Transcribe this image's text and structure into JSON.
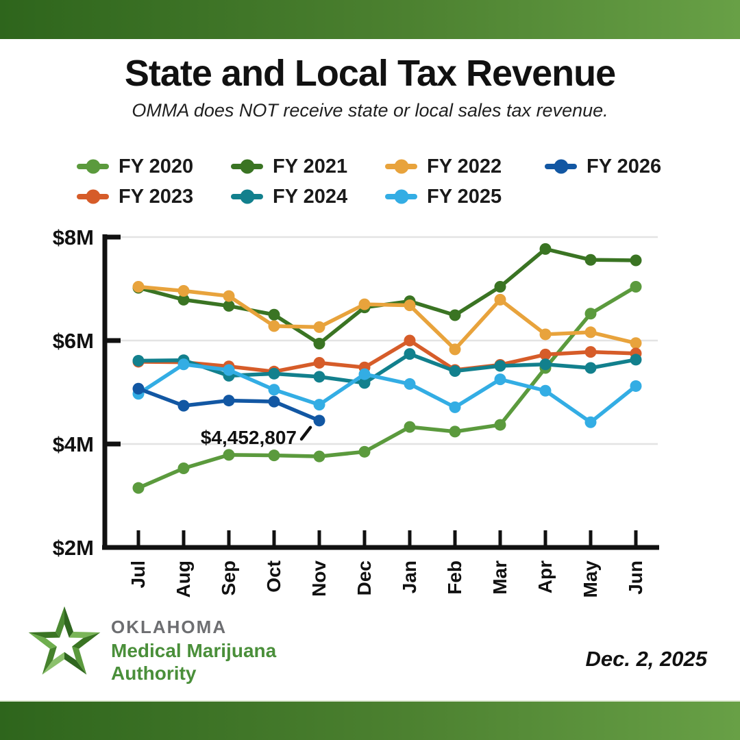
{
  "header": {
    "title": "State and Local Tax Revenue",
    "subtitle": "OMMA does NOT receive state or local sales tax revenue."
  },
  "legend": {
    "order": [
      "FY 2020",
      "FY 2021",
      "FY 2022",
      "FY 2026",
      "FY 2023",
      "FY 2024",
      "FY 2025"
    ]
  },
  "chart_data": {
    "type": "line",
    "title": "State and Local Tax Revenue",
    "categories": [
      "Jul",
      "Aug",
      "Sep",
      "Oct",
      "Nov",
      "Dec",
      "Jan",
      "Feb",
      "Mar",
      "Apr",
      "May",
      "Jun"
    ],
    "y_unit": "millions USD",
    "ylim": [
      2,
      8
    ],
    "yticks": [
      {
        "value": 8,
        "label": "$8M"
      },
      {
        "value": 6,
        "label": "$6M"
      },
      {
        "value": 4,
        "label": "$4M"
      },
      {
        "value": 2,
        "label": "$2M"
      }
    ],
    "grid": "horizontal",
    "legend_position": "top",
    "series": [
      {
        "name": "FY 2020",
        "color": "#5b9a3d",
        "values": [
          3.15,
          3.53,
          3.79,
          3.78,
          3.76,
          3.85,
          4.33,
          4.24,
          4.37,
          5.47,
          6.52,
          7.04
        ]
      },
      {
        "name": "FY 2021",
        "color": "#3a7423",
        "values": [
          7.02,
          6.79,
          6.67,
          6.5,
          5.94,
          6.64,
          6.76,
          6.49,
          7.04,
          7.77,
          7.56,
          7.55
        ]
      },
      {
        "name": "FY 2022",
        "color": "#e8a33c",
        "values": [
          7.04,
          6.96,
          6.86,
          6.28,
          6.26,
          6.7,
          6.68,
          5.83,
          6.79,
          6.12,
          6.16,
          5.95
        ]
      },
      {
        "name": "FY 2023",
        "color": "#d65c29",
        "values": [
          5.59,
          5.58,
          5.5,
          5.4,
          5.57,
          5.48,
          6.0,
          5.43,
          5.53,
          5.73,
          5.78,
          5.75
        ]
      },
      {
        "name": "FY 2024",
        "color": "#12808d",
        "values": [
          5.61,
          5.62,
          5.32,
          5.36,
          5.3,
          5.18,
          5.74,
          5.41,
          5.51,
          5.54,
          5.47,
          5.63
        ]
      },
      {
        "name": "FY 2025",
        "color": "#33ade4",
        "values": [
          4.97,
          5.54,
          5.43,
          5.05,
          4.76,
          5.35,
          5.16,
          4.71,
          5.25,
          5.03,
          4.42,
          5.12
        ]
      },
      {
        "name": "FY 2026",
        "color": "#1257a3",
        "values": [
          5.07,
          4.74,
          4.84,
          4.82,
          4.4528
        ]
      }
    ],
    "annotation": {
      "text": "$4,452,807",
      "series": "FY 2026",
      "category": "Nov",
      "value_exact": 4452807
    }
  },
  "footer": {
    "logo": {
      "line1": "OKLAHOMA",
      "line2": "Medical Marijuana",
      "line3": "Authority"
    },
    "date": "Dec. 2, 2025"
  },
  "colors": {
    "band_dark": "#2e651c",
    "band_light": "#68a046",
    "axis": "#111111",
    "gridline": "#e3e3e3",
    "title_text": "#111111",
    "logo_gray": "#6d6e71",
    "logo_green": "#4a8f3a"
  }
}
